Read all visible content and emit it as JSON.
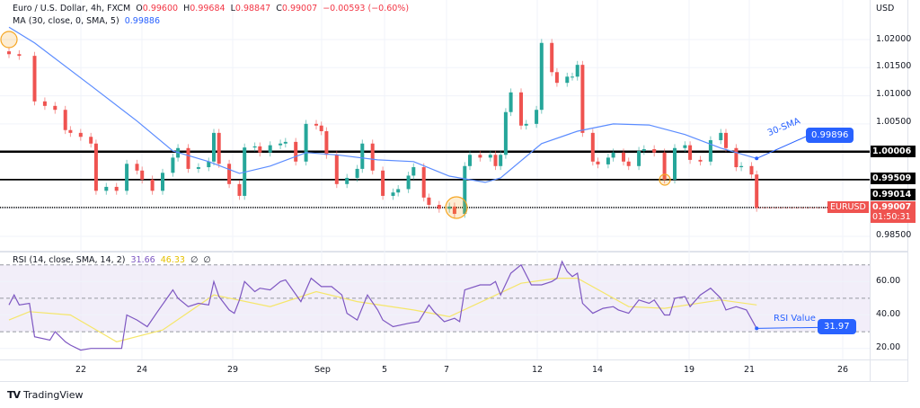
{
  "header": {
    "symbol": "Euro / U.S. Dollar, 4h, FXCM",
    "o_label": "O",
    "o": "0.99600",
    "h_label": "H",
    "h": "0.99684",
    "l_label": "L",
    "l": "0.98847",
    "c_label": "C",
    "c": "0.99007",
    "change": "−0.00593 (−0.60%)",
    "ma_label": "MA (30, close, 0, SMA, 5)",
    "ma_value": "0.99886"
  },
  "rsi_legend": {
    "label": "RSI (14, close, SMA, 14, 2)",
    "rsi": "31.66",
    "ma": "46.33",
    "extra1": "∅",
    "extra2": "∅"
  },
  "price_axis": {
    "currency": "USD",
    "ticks": [
      "1.02000",
      "1.01500",
      "1.01000",
      "1.00500",
      "0.98500"
    ]
  },
  "levels": [
    {
      "value": 1.00006,
      "label": "1.00006"
    },
    {
      "value": 0.99509,
      "label": "0.99509"
    },
    {
      "value": 0.99014,
      "label": "0.99014"
    }
  ],
  "current": {
    "symbol": "EURUSD",
    "price": "0.99007",
    "countdown": "01:50:31",
    "value": 0.99007
  },
  "annotations": {
    "sma_text": "30-SMA",
    "sma_value": "0.99896",
    "rsi_text": "RSI Value",
    "rsi_value": "31.97"
  },
  "rsi_axis": [
    "60.00",
    "40.00",
    "20.00"
  ],
  "time_axis": [
    "22",
    "24",
    "29",
    "Sep",
    "5",
    "7",
    "12",
    "14",
    "19",
    "21",
    "26"
  ],
  "footer": {
    "brand": "TradingView"
  },
  "colors": {
    "up": "#26a69a",
    "down": "#ef5350",
    "ma": "#5b8cff",
    "rsi": "#7e57c2",
    "rsi_ma": "#f5e66a",
    "band": "#ede7f6",
    "highlight": "#f5a623"
  },
  "chart_data": {
    "type": "candlestick",
    "title": "Euro / U.S. Dollar, 4h, FXCM",
    "ylim": [
      0.983,
      1.0225
    ],
    "x_unit": "bar",
    "candles": [
      [
        0,
        1.0174
      ],
      [
        2,
        1.0171
      ],
      [
        5,
        1.009
      ],
      [
        7,
        1.0082
      ],
      [
        9,
        1.0075
      ],
      [
        11,
        1.0039
      ],
      [
        12,
        1.0034
      ],
      [
        14,
        1.0027
      ],
      [
        16,
        1.0015
      ],
      [
        17,
        0.9931
      ],
      [
        19,
        0.9938
      ],
      [
        21,
        0.9931
      ],
      [
        23,
        0.9979
      ],
      [
        25,
        0.9967
      ],
      [
        26,
        0.9951
      ],
      [
        28,
        0.9931
      ],
      [
        30,
        0.9963
      ],
      [
        32,
        0.999
      ],
      [
        33,
        1.0007
      ],
      [
        35,
        0.997
      ],
      [
        37,
        0.9973
      ],
      [
        39,
        0.9983
      ],
      [
        40,
        1.0034
      ],
      [
        41,
        0.9979
      ],
      [
        43,
        0.9943
      ],
      [
        45,
        0.9922
      ],
      [
        46,
        1.0008
      ],
      [
        48,
        1.001
      ],
      [
        49,
        0.9999
      ],
      [
        51,
        1.0012
      ],
      [
        53,
        1.0015
      ],
      [
        54,
        1.0018
      ],
      [
        56,
        0.9983
      ],
      [
        58,
        1.005
      ],
      [
        60,
        1.0047
      ],
      [
        61,
        1.0037
      ],
      [
        62,
        0.9995
      ],
      [
        64,
        0.9943
      ],
      [
        66,
        0.9954
      ],
      [
        68,
        0.997
      ],
      [
        69,
        1.0015
      ],
      [
        71,
        0.9967
      ],
      [
        73,
        0.9922
      ],
      [
        75,
        0.9928
      ],
      [
        76,
        0.9934
      ],
      [
        78,
        0.9958
      ],
      [
        79,
        0.9973
      ],
      [
        81,
        0.9919
      ],
      [
        82,
        0.9906
      ],
      [
        84,
        0.9899
      ],
      [
        86,
        0.9903
      ],
      [
        87,
        0.989
      ],
      [
        89,
        0.9975
      ],
      [
        90,
        0.9995
      ],
      [
        92,
        0.999
      ],
      [
        94,
        0.9995
      ],
      [
        95,
        0.9975
      ],
      [
        96,
        0.9995
      ],
      [
        97,
        1.0071
      ],
      [
        98,
        1.0106
      ],
      [
        100,
        1.0047
      ],
      [
        101,
        1.005
      ],
      [
        103,
        1.0075
      ],
      [
        104,
        1.0194
      ],
      [
        106,
        1.0142
      ],
      [
        107,
        1.0123
      ],
      [
        109,
        1.0134
      ],
      [
        110,
        1.0134
      ],
      [
        111,
        1.0155
      ],
      [
        112,
        1.0034
      ],
      [
        114,
        0.9983
      ],
      [
        115,
        0.9978
      ],
      [
        117,
        0.999
      ],
      [
        118,
        0.9999
      ],
      [
        120,
        0.9983
      ],
      [
        121,
        0.9975
      ],
      [
        123,
        1.0002
      ],
      [
        124,
        1.0005
      ],
      [
        126,
        0.9999
      ],
      [
        128,
        0.9951
      ],
      [
        130,
        1.0007
      ],
      [
        132,
        1.0012
      ],
      [
        133,
        0.9986
      ],
      [
        135,
        0.9983
      ],
      [
        137,
        1.0021
      ],
      [
        139,
        1.0034
      ],
      [
        140,
        1.0007
      ],
      [
        142,
        0.9973
      ],
      [
        143,
        0.9975
      ],
      [
        145,
        0.996
      ],
      [
        146,
        0.99007
      ]
    ],
    "ma30": [
      [
        0,
        1.0222
      ],
      [
        5,
        1.0194
      ],
      [
        16,
        1.0118
      ],
      [
        25,
        1.0055
      ],
      [
        32,
        1.0002
      ],
      [
        39,
        0.9983
      ],
      [
        45,
        0.9962
      ],
      [
        51,
        0.9975
      ],
      [
        58,
        0.9999
      ],
      [
        64,
        0.9995
      ],
      [
        72,
        0.9986
      ],
      [
        79,
        0.9983
      ],
      [
        86,
        0.9957
      ],
      [
        93,
        0.9946
      ],
      [
        96,
        0.9954
      ],
      [
        104,
        1.0015
      ],
      [
        111,
        1.0037
      ],
      [
        118,
        1.005
      ],
      [
        125,
        1.0048
      ],
      [
        132,
        1.0031
      ],
      [
        139,
        1.0007
      ],
      [
        146,
        0.99886
      ]
    ],
    "rsi_ylim": [
      13,
      75
    ],
    "rsi_band": [
      30,
      70
    ],
    "rsi": [
      [
        0,
        46
      ],
      [
        1,
        52
      ],
      [
        2,
        46
      ],
      [
        4,
        47
      ],
      [
        5,
        27
      ],
      [
        8,
        25
      ],
      [
        9,
        30
      ],
      [
        11,
        24
      ],
      [
        12,
        22
      ],
      [
        14,
        19
      ],
      [
        16,
        20
      ],
      [
        18,
        20
      ],
      [
        22,
        20
      ],
      [
        23,
        40
      ],
      [
        25,
        37
      ],
      [
        27,
        33
      ],
      [
        29,
        42
      ],
      [
        32,
        55
      ],
      [
        33,
        50
      ],
      [
        35,
        45
      ],
      [
        37,
        47
      ],
      [
        39,
        46
      ],
      [
        40,
        60
      ],
      [
        41,
        51
      ],
      [
        43,
        43
      ],
      [
        44,
        41
      ],
      [
        45,
        49
      ],
      [
        46,
        60
      ],
      [
        48,
        54
      ],
      [
        49,
        56
      ],
      [
        51,
        55
      ],
      [
        53,
        60
      ],
      [
        54,
        61
      ],
      [
        57,
        48
      ],
      [
        59,
        62
      ],
      [
        61,
        57
      ],
      [
        63,
        57
      ],
      [
        65,
        52
      ],
      [
        66,
        41
      ],
      [
        68,
        37
      ],
      [
        70,
        52
      ],
      [
        72,
        43
      ],
      [
        73,
        37
      ],
      [
        75,
        33
      ],
      [
        78,
        35
      ],
      [
        80,
        36
      ],
      [
        82,
        46
      ],
      [
        83,
        42
      ],
      [
        85,
        36
      ],
      [
        87,
        38
      ],
      [
        88,
        36
      ],
      [
        89,
        55
      ],
      [
        92,
        58
      ],
      [
        94,
        58
      ],
      [
        95,
        60
      ],
      [
        96,
        52
      ],
      [
        98,
        65
      ],
      [
        100,
        70
      ],
      [
        102,
        58
      ],
      [
        104,
        58
      ],
      [
        106,
        60
      ],
      [
        107,
        62
      ],
      [
        108,
        72
      ],
      [
        109,
        66
      ],
      [
        110,
        63
      ],
      [
        111,
        65
      ],
      [
        112,
        47
      ],
      [
        114,
        41
      ],
      [
        116,
        44
      ],
      [
        118,
        45
      ],
      [
        119,
        43
      ],
      [
        121,
        41
      ],
      [
        123,
        49
      ],
      [
        125,
        47
      ],
      [
        126,
        49
      ],
      [
        128,
        40
      ],
      [
        129,
        40
      ],
      [
        130,
        50
      ],
      [
        132,
        51
      ],
      [
        133,
        45
      ],
      [
        135,
        52
      ],
      [
        137,
        56
      ],
      [
        139,
        50
      ],
      [
        140,
        43
      ],
      [
        142,
        45
      ],
      [
        144,
        43
      ],
      [
        146,
        32
      ]
    ],
    "rsi_ma": [
      [
        0,
        37
      ],
      [
        4,
        42
      ],
      [
        12,
        40
      ],
      [
        21,
        24
      ],
      [
        30,
        31
      ],
      [
        40,
        52
      ],
      [
        51,
        45
      ],
      [
        60,
        54
      ],
      [
        68,
        48
      ],
      [
        79,
        43
      ],
      [
        86,
        39
      ],
      [
        93,
        49
      ],
      [
        100,
        59
      ],
      [
        107,
        62
      ],
      [
        111,
        62
      ],
      [
        121,
        45
      ],
      [
        128,
        44
      ],
      [
        139,
        49
      ],
      [
        146,
        46
      ]
    ]
  }
}
